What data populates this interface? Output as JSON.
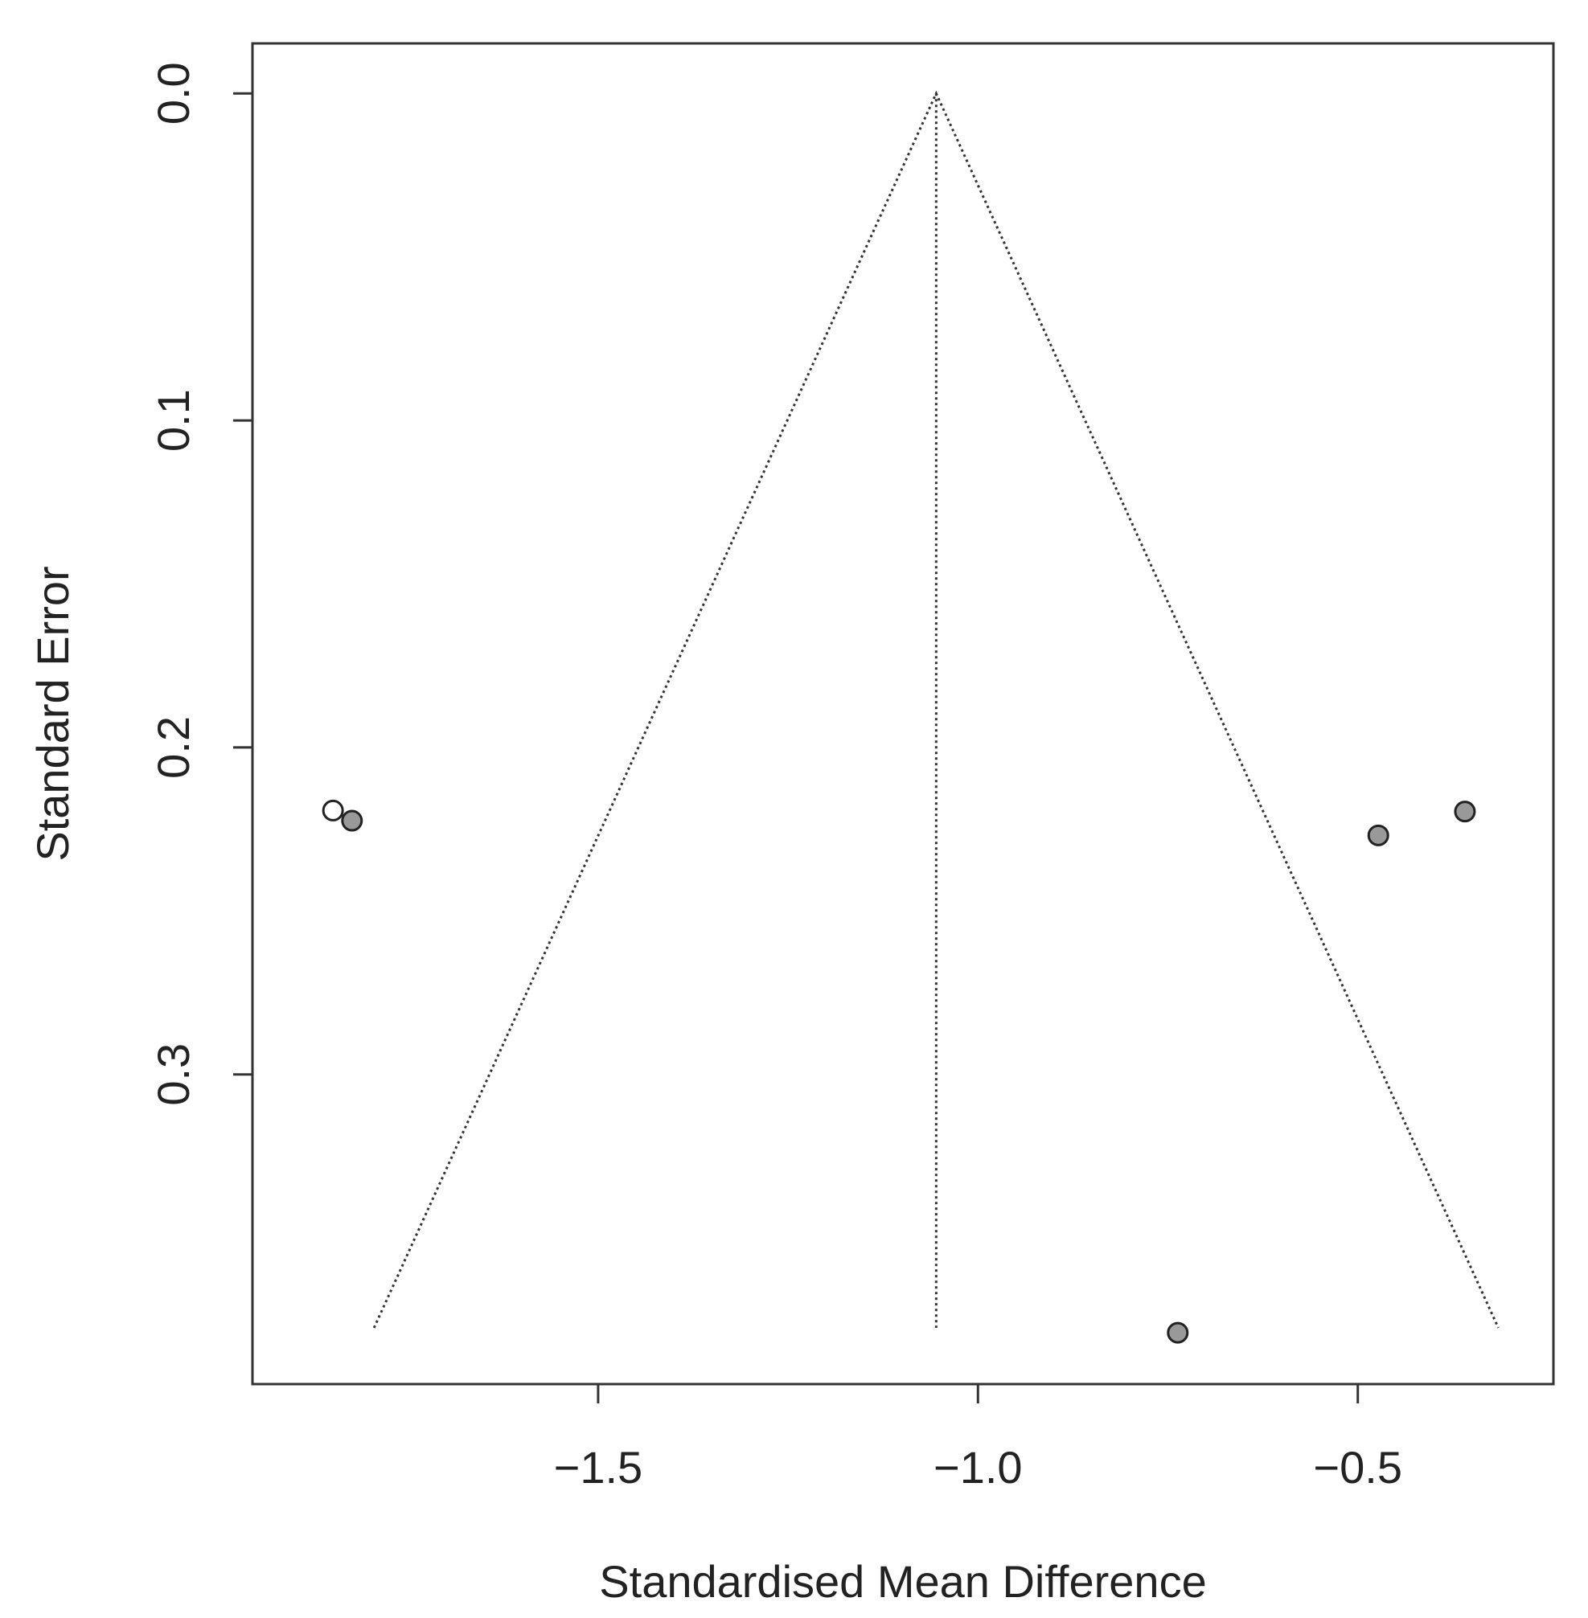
{
  "chart_data": {
    "type": "scatter",
    "x_label": "Standardised Mean Difference",
    "y_label": "Standard Error",
    "xlim": [
      -1.955,
      -0.2425
    ],
    "ylim": [
      0.3947,
      -0.0153
    ],
    "xticks": [
      {
        "value": -1.5,
        "label": "−1.5"
      },
      {
        "value": -1.0,
        "label": "−1.0"
      },
      {
        "value": -0.5,
        "label": "−0.5"
      }
    ],
    "yticks": [
      {
        "value": 0,
        "label": "0.0"
      },
      0.1,
      0.2,
      0.3
    ],
    "series": [
      {
        "x": [
          -1.849,
          -1.824,
          -0.473,
          -0.359,
          -0.737
        ],
        "values": [
          0.2193,
          0.2224,
          0.2269,
          0.2196,
          0.379
        ],
        "colors": [
          "#ffffff",
          "#999999",
          "#999999",
          "#999999",
          "#999999"
        ]
      }
    ],
    "lines": [
      {
        "x": [
          -1.795,
          -1.055,
          -0.315
        ],
        "values": [
          0.3775,
          0,
          0.3775
        ]
      },
      {
        "x": [
          -1.055,
          -1.055
        ],
        "values": [
          0,
          0.3775
        ]
      }
    ]
  }
}
